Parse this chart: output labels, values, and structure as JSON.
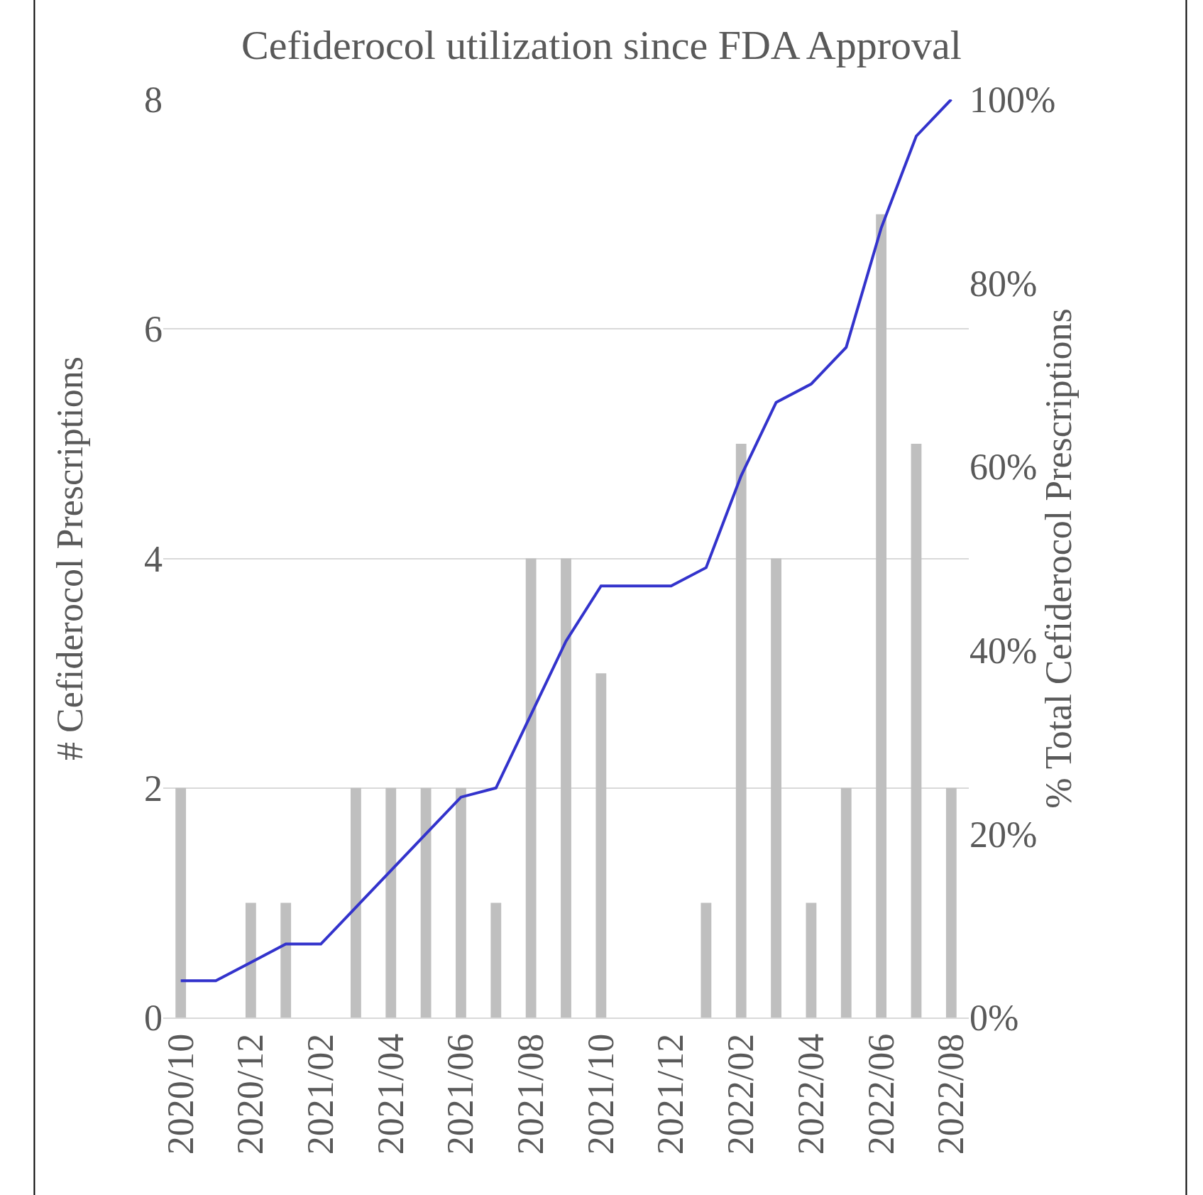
{
  "chart_data": {
    "type": "bar",
    "title": "Cefiderocol utilization since FDA Approval",
    "ylabel": "# Cefiderocol Prescriptions",
    "y2label": "% Total Cefiderocol Prescriptions",
    "categories": [
      "2020/10",
      null,
      "2020/12",
      null,
      "2021/02",
      null,
      "2021/04",
      null,
      "2021/06",
      null,
      "2021/08",
      null,
      "2021/10",
      null,
      "2021/12",
      null,
      "2022/02",
      null,
      "2022/04",
      null,
      "2022/06",
      null,
      "2022/08"
    ],
    "series": [
      {
        "color": "#bfbfbf",
        "values": [
          2,
          0,
          1,
          1,
          0,
          2,
          2,
          2,
          2,
          1,
          4,
          4,
          3,
          0,
          0,
          1,
          5,
          4,
          1,
          2,
          7,
          5,
          2
        ]
      },
      {
        "type": "line",
        "axis": "y2",
        "color": "#3333cc",
        "values": [
          4,
          4,
          6,
          8,
          8,
          12,
          16,
          20,
          24,
          25,
          33,
          41,
          47,
          47,
          47,
          49,
          59,
          67,
          69,
          73,
          86,
          96,
          100
        ]
      }
    ],
    "ylim": [
      0,
      8
    ],
    "yticks": [
      0,
      2,
      4,
      6,
      8
    ],
    "y2lim": [
      0,
      100
    ],
    "y2ticks": [
      {
        "value": 0,
        "label": "0%"
      },
      {
        "value": 20,
        "label": "20%"
      },
      {
        "value": 40,
        "label": "40%"
      },
      {
        "value": 60,
        "label": "60%"
      },
      {
        "value": 80,
        "label": "80%"
      },
      {
        "value": 100,
        "label": "100%"
      }
    ],
    "grid": "y"
  }
}
